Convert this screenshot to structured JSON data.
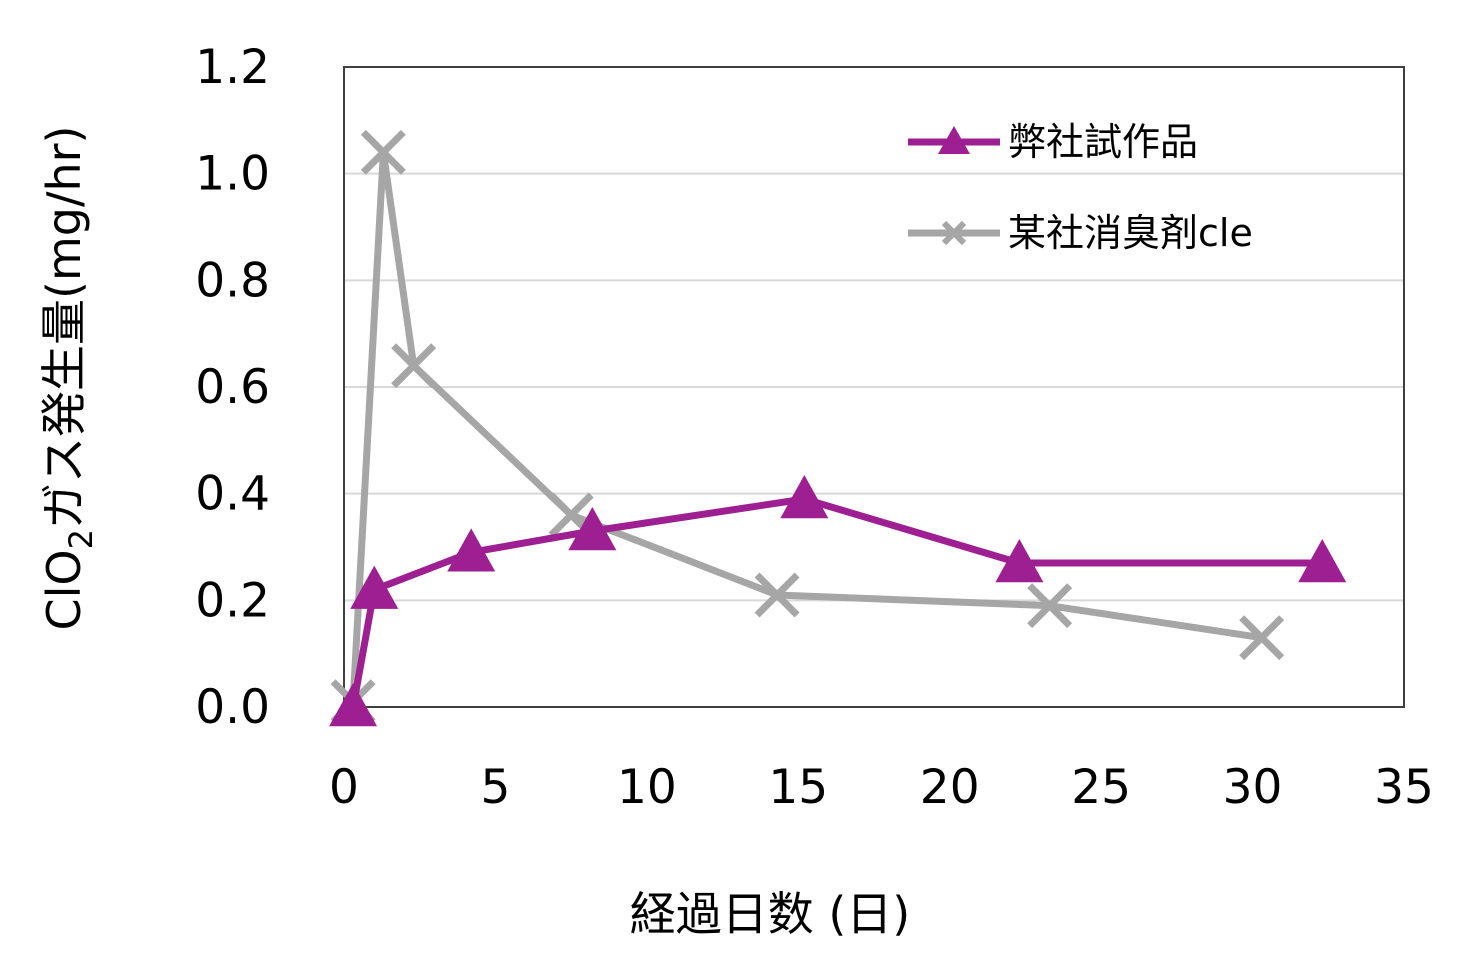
{
  "chart_data": {
    "type": "line",
    "xlabel": "経過日数 (日)",
    "ylabel_parts": [
      "ClO",
      "2",
      "ガス発生量(mg/hr)"
    ],
    "xlim": [
      0,
      35
    ],
    "ylim": [
      0,
      1.2
    ],
    "x_ticks": [
      "0",
      "5",
      "10",
      "15",
      "20",
      "25",
      "30",
      "35"
    ],
    "y_ticks": [
      "0.0",
      "0.2",
      "0.4",
      "0.6",
      "0.8",
      "1.0",
      "1.2"
    ],
    "grid": "horizontal",
    "legend_position": "top-right",
    "series": [
      {
        "name": "弊社試作品",
        "color": "#9E1F91",
        "marker": "triangle",
        "x": [
          0.3,
          1.0,
          4.2,
          8.2,
          15.2,
          22.3,
          32.3
        ],
        "y": [
          0.0,
          0.22,
          0.29,
          0.33,
          0.39,
          0.27,
          0.27
        ]
      },
      {
        "name": "某社消臭剤cle",
        "color": "#A6A6A6",
        "marker": "x",
        "x": [
          0.3,
          1.3,
          2.3,
          7.5,
          14.3,
          23.3,
          30.3
        ],
        "y": [
          0.01,
          1.04,
          0.64,
          0.36,
          0.21,
          0.19,
          0.13
        ]
      }
    ]
  }
}
